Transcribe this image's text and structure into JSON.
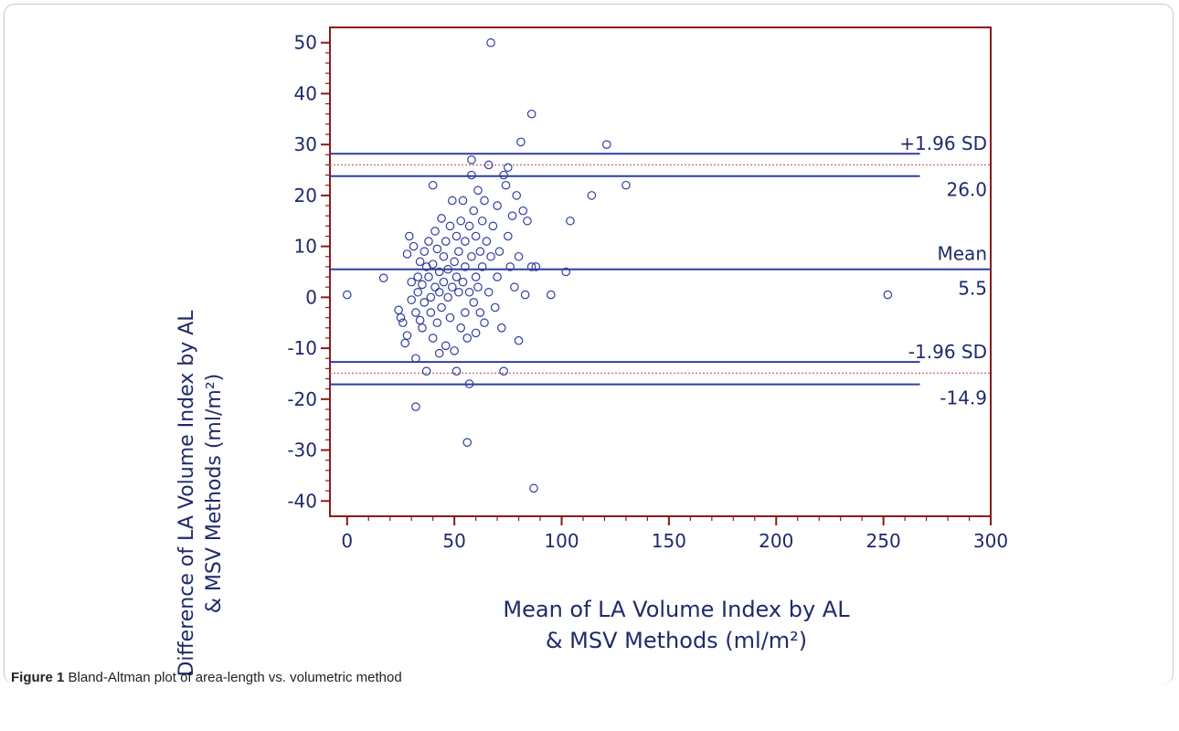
{
  "caption": {
    "label": "Figure 1",
    "text": "Bland-Altman plot of area-length vs. volumetric method"
  },
  "chart_data": {
    "type": "scatter",
    "title": "",
    "xlabel_line1": "Mean of LA Volume Index by AL",
    "xlabel_line2": "& MSV Methods (ml/m²)",
    "ylabel_line1": "Difference of LA Volume Index by AL",
    "ylabel_line2": "& MSV Methods (ml/m²)",
    "xlim": [
      -8,
      300
    ],
    "ylim": [
      -43,
      53
    ],
    "x_ticks": [
      0,
      50,
      100,
      150,
      200,
      250,
      300
    ],
    "y_ticks": [
      -40,
      -30,
      -20,
      -10,
      0,
      10,
      20,
      30,
      40,
      50
    ],
    "colors": {
      "axis": "#8b1a1a",
      "line": "#2f3e9e",
      "limit_dotted": "#c96a6a",
      "points": "#2f3e9e",
      "text": "#1f2a6b"
    },
    "reference_lines": [
      {
        "name": "+1.96 SD",
        "value": 26.0,
        "value_label": "26.0",
        "band": [
          23.8,
          28.2
        ]
      },
      {
        "name": "Mean",
        "value": 5.5,
        "value_label": "5.5"
      },
      {
        "name": "-1.96 SD",
        "value": -14.9,
        "value_label": "-14.9",
        "band": [
          -17.1,
          -12.7
        ]
      }
    ],
    "points": [
      [
        0,
        0.5
      ],
      [
        17,
        3.8
      ],
      [
        24,
        -2.5
      ],
      [
        25,
        -4
      ],
      [
        26,
        -5
      ],
      [
        27,
        -9
      ],
      [
        28,
        -7.5
      ],
      [
        28,
        8.5
      ],
      [
        29,
        12
      ],
      [
        30,
        -0.5
      ],
      [
        30,
        3
      ],
      [
        31,
        10
      ],
      [
        32,
        -3
      ],
      [
        32,
        -12
      ],
      [
        32,
        -21.5
      ],
      [
        33,
        1
      ],
      [
        33,
        4
      ],
      [
        34,
        7
      ],
      [
        34,
        -4.5
      ],
      [
        35,
        2.5
      ],
      [
        35,
        -6
      ],
      [
        36,
        9
      ],
      [
        36,
        -1
      ],
      [
        37,
        6
      ],
      [
        37,
        -14.5
      ],
      [
        38,
        4
      ],
      [
        38,
        11
      ],
      [
        39,
        -3
      ],
      [
        39,
        0
      ],
      [
        40,
        22
      ],
      [
        40,
        6.5
      ],
      [
        40,
        -8
      ],
      [
        41,
        2
      ],
      [
        41,
        13
      ],
      [
        42,
        -5
      ],
      [
        42,
        9.5
      ],
      [
        43,
        1
      ],
      [
        43,
        5
      ],
      [
        43,
        -11
      ],
      [
        44,
        15.5
      ],
      [
        44,
        -2
      ],
      [
        45,
        3
      ],
      [
        45,
        8
      ],
      [
        46,
        -9.5
      ],
      [
        46,
        11
      ],
      [
        47,
        0
      ],
      [
        47,
        5.5
      ],
      [
        48,
        14
      ],
      [
        48,
        -4
      ],
      [
        49,
        2
      ],
      [
        49,
        19
      ],
      [
        50,
        7
      ],
      [
        50,
        -10.5
      ],
      [
        51,
        4
      ],
      [
        51,
        12
      ],
      [
        51,
        -14.5
      ],
      [
        52,
        1
      ],
      [
        52,
        9
      ],
      [
        53,
        15
      ],
      [
        53,
        -6
      ],
      [
        54,
        3
      ],
      [
        54,
        19
      ],
      [
        55,
        6
      ],
      [
        55,
        -3
      ],
      [
        55,
        11
      ],
      [
        56,
        -28.5
      ],
      [
        56,
        -8
      ],
      [
        57,
        14
      ],
      [
        57,
        -17
      ],
      [
        57,
        1
      ],
      [
        58,
        24
      ],
      [
        58,
        27
      ],
      [
        58,
        8
      ],
      [
        59,
        -1
      ],
      [
        59,
        17
      ],
      [
        60,
        4
      ],
      [
        60,
        12
      ],
      [
        60,
        -7
      ],
      [
        61,
        21
      ],
      [
        61,
        2
      ],
      [
        62,
        9
      ],
      [
        62,
        -3
      ],
      [
        63,
        15
      ],
      [
        63,
        6
      ],
      [
        64,
        19
      ],
      [
        64,
        -5
      ],
      [
        65,
        11
      ],
      [
        66,
        1
      ],
      [
        66,
        26
      ],
      [
        67,
        50
      ],
      [
        67,
        8
      ],
      [
        68,
        14
      ],
      [
        69,
        -2
      ],
      [
        70,
        18
      ],
      [
        70,
        4
      ],
      [
        71,
        9
      ],
      [
        72,
        -6
      ],
      [
        73,
        24
      ],
      [
        73,
        -14.5
      ],
      [
        74,
        22
      ],
      [
        75,
        12
      ],
      [
        75,
        25.5
      ],
      [
        76,
        6
      ],
      [
        77,
        16
      ],
      [
        78,
        2
      ],
      [
        79,
        20
      ],
      [
        80,
        8
      ],
      [
        80,
        -8.5
      ],
      [
        81,
        30.5
      ],
      [
        82,
        17
      ],
      [
        83,
        0.5
      ],
      [
        84,
        15
      ],
      [
        86,
        36
      ],
      [
        86,
        6
      ],
      [
        87,
        -37.5
      ],
      [
        88,
        6
      ],
      [
        95,
        0.5
      ],
      [
        102,
        5
      ],
      [
        104,
        15
      ],
      [
        114,
        20
      ],
      [
        121,
        30
      ],
      [
        130,
        22
      ],
      [
        252,
        0.5
      ]
    ]
  }
}
